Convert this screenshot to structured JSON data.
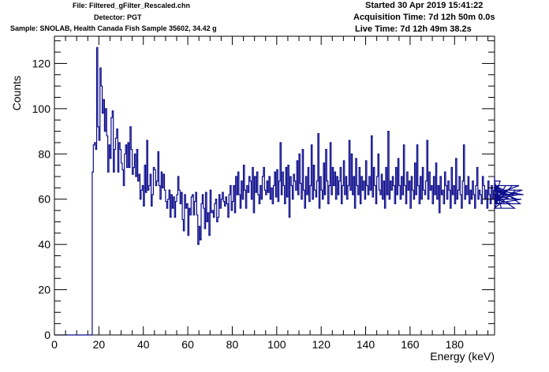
{
  "header": {
    "file": "File: Filtered_gFilter_Rescaled.chn",
    "detector": "Detector: PGT",
    "sample": "Sample: SNOLAB, Health Canada Fish Sample 35602, 34.42 g",
    "started": "Started 30 Apr 2019 15:41:22",
    "acquisition_time": "Acquisition Time: 7d 12h 50m 0.0s",
    "live_time": "Live Time: 7d 12h 49m 38.2s"
  },
  "colors": {
    "series": "#0b0b8c",
    "axis": "#000000"
  },
  "chart_data": {
    "type": "line",
    "style": "step-histogram",
    "xlabel": "Energy (keV)",
    "ylabel": "Counts",
    "xlim": [
      0,
      198
    ],
    "ylim": [
      0,
      132
    ],
    "x_ticks": [
      0,
      20,
      40,
      60,
      80,
      100,
      120,
      140,
      160,
      180
    ],
    "y_ticks": [
      0,
      20,
      40,
      60,
      80,
      100,
      120
    ],
    "x_tick_labels": [
      "0",
      "20",
      "40",
      "60",
      "80",
      "100",
      "120",
      "140",
      "160",
      "180"
    ],
    "y_tick_labels": [
      "0",
      "20",
      "40",
      "60",
      "80",
      "100",
      "120"
    ],
    "grid": false,
    "legend": "none",
    "bin_width": 0.5,
    "x_start": 0,
    "series": [
      {
        "values": [
          0,
          0,
          0,
          0,
          0,
          0,
          0,
          0,
          0,
          0,
          0,
          0,
          0,
          0,
          0,
          0,
          0,
          0,
          0,
          0,
          0,
          0,
          0,
          0,
          0,
          0,
          0,
          0,
          0,
          0,
          0,
          0,
          0,
          0,
          72,
          84,
          85,
          82,
          127,
          92,
          86,
          118,
          110,
          98,
          104,
          90,
          100,
          88,
          72,
          84,
          78,
          96,
          99,
          72,
          82,
          87,
          91,
          72,
          85,
          82,
          76,
          73,
          66,
          80,
          84,
          74,
          85,
          74,
          92,
          82,
          71,
          74,
          80,
          70,
          82,
          68,
          71,
          60,
          64,
          66,
          57,
          75,
          63,
          86,
          64,
          66,
          71,
          57,
          62,
          74,
          73,
          66,
          68,
          81,
          66,
          60,
          72,
          65,
          71,
          64,
          59,
          56,
          60,
          64,
          52,
          62,
          56,
          61,
          52,
          59,
          62,
          70,
          64,
          58,
          63,
          51,
          46,
          62,
          56,
          58,
          44,
          56,
          53,
          61,
          62,
          53,
          59,
          63,
          53,
          40,
          48,
          42,
          58,
          62,
          56,
          47,
          63,
          50,
          54,
          44,
          64,
          54,
          55,
          52,
          58,
          60,
          50,
          52,
          62,
          56,
          60,
          63,
          59,
          57,
          61,
          58,
          52,
          62,
          66,
          55,
          59,
          66,
          54,
          70,
          62,
          72,
          62,
          56,
          68,
          60,
          75,
          64,
          56,
          66,
          63,
          70,
          68,
          60,
          74,
          54,
          70,
          63,
          72,
          62,
          58,
          66,
          60,
          70,
          74,
          64,
          62,
          68,
          63,
          70,
          60,
          65,
          58,
          66,
          72,
          61,
          73,
          59,
          68,
          85,
          62,
          72,
          66,
          58,
          74,
          61,
          75,
          52,
          70,
          66,
          60,
          71,
          68,
          64,
          77,
          62,
          80,
          67,
          60,
          82,
          64,
          56,
          70,
          62,
          74,
          59,
          66,
          84,
          60,
          75,
          64,
          61,
          68,
          89,
          56,
          70,
          64,
          60,
          76,
          62,
          82,
          68,
          58,
          66,
          85,
          62,
          74,
          66,
          72,
          60,
          70,
          62,
          68,
          74,
          58,
          66,
          77,
          62,
          70,
          60,
          66,
          86,
          64,
          80,
          62,
          70,
          56,
          78,
          66,
          62,
          74,
          58,
          70,
          64,
          68,
          60,
          77,
          66,
          62,
          70,
          64,
          88,
          61,
          74,
          66,
          58,
          70,
          80,
          64,
          62,
          71,
          60,
          68,
          56,
          74,
          62,
          90,
          60,
          68,
          64,
          70,
          66,
          58,
          74,
          62,
          78,
          66,
          60,
          70,
          62,
          84,
          66,
          58,
          72,
          64,
          68,
          56,
          70,
          64,
          60,
          76,
          62,
          84,
          66,
          58,
          70,
          60,
          74,
          64,
          62,
          68,
          86,
          60,
          72,
          64,
          66,
          58,
          70,
          62,
          76,
          60,
          66,
          54,
          70,
          62,
          64,
          58,
          72,
          66,
          60,
          68,
          64,
          56,
          74,
          62,
          66,
          58,
          78,
          60,
          64,
          70,
          62,
          56,
          68,
          84,
          60,
          66,
          62,
          70,
          58,
          64,
          60,
          68,
          62,
          56,
          66,
          74,
          60,
          64,
          62,
          58,
          70,
          66,
          60,
          64,
          56,
          68,
          62,
          58,
          66,
          60,
          64,
          70,
          58,
          62,
          66,
          60,
          68,
          56,
          64,
          62,
          58,
          66,
          60,
          64,
          62,
          60,
          58,
          66,
          62,
          56,
          64,
          60,
          62,
          66,
          58,
          60,
          64,
          62
        ]
      }
    ]
  }
}
